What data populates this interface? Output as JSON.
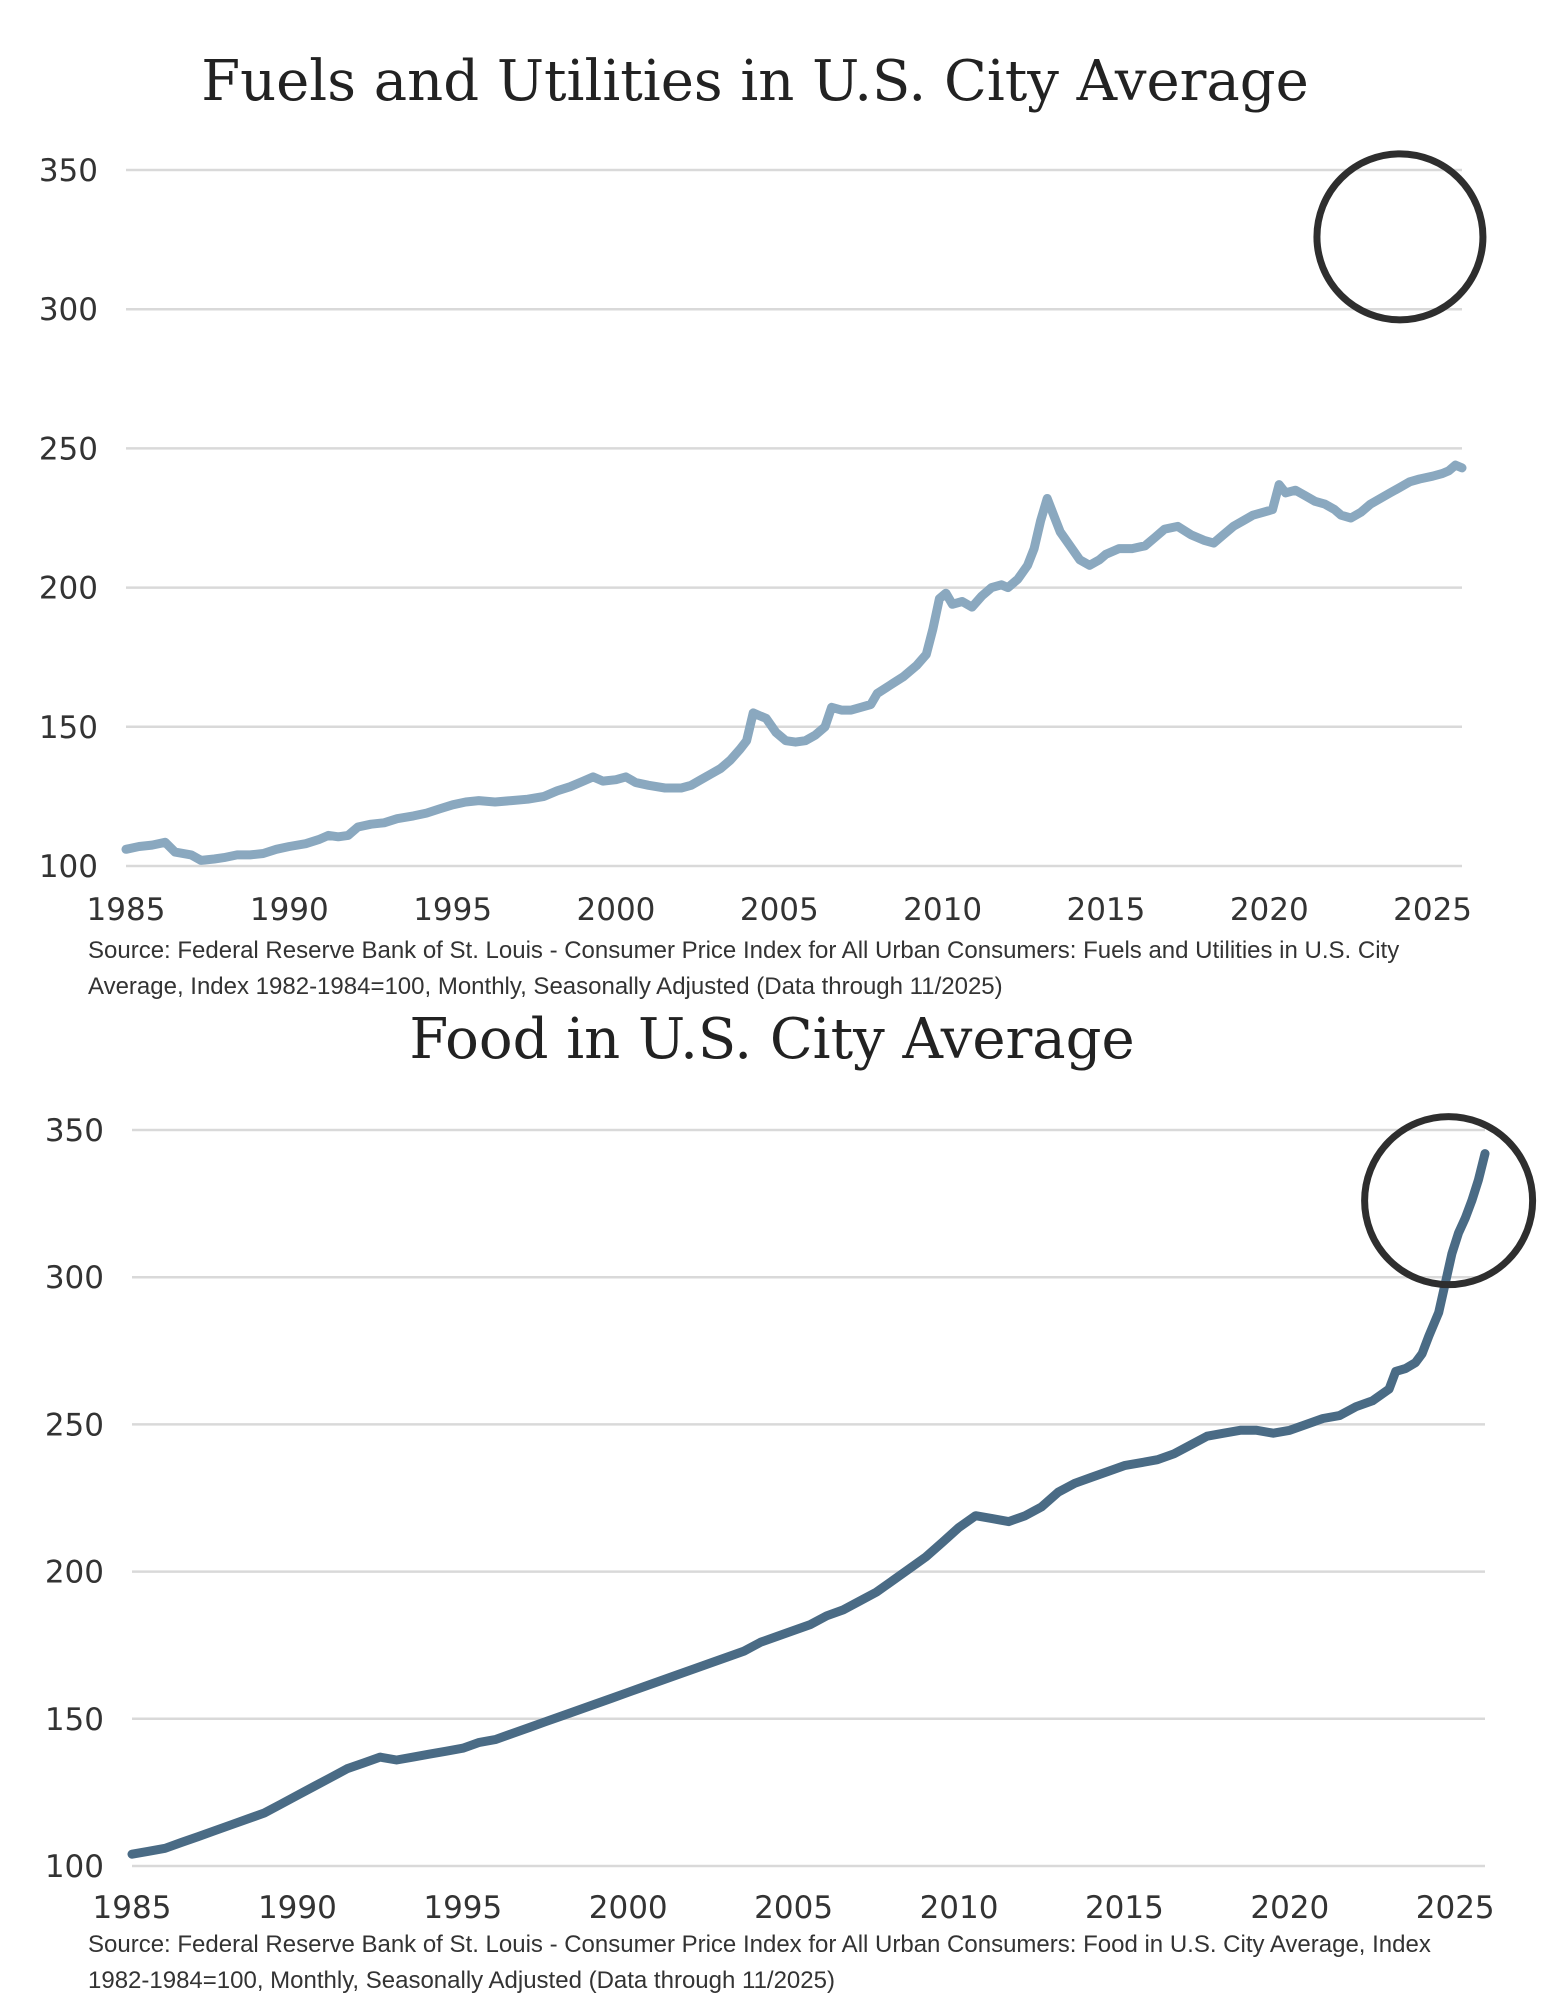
{
  "chart_data": [
    {
      "type": "line",
      "title": "Fuels and Utilities in U.S. City Average",
      "xlabel": "",
      "ylabel": "",
      "xlim": [
        1985,
        2025.9
      ],
      "ylim": [
        100,
        350
      ],
      "x_ticks": [
        1985,
        1990,
        1995,
        2000,
        2005,
        2010,
        2015,
        2020,
        2025
      ],
      "y_ticks": [
        100,
        150,
        200,
        250,
        300,
        350
      ],
      "grid": true,
      "line_color": "#8aa8bf",
      "source": "Source: Federal Reserve Bank of St. Louis - Consumer Price Index for All Urban Consumers: Fuels and Utilities in U.S. City Average, Index 1982-1984=100, Monthly, Seasonally Adjusted (Data through 11/2025)",
      "annotation": {
        "type": "circle",
        "x": 2024,
        "y": 326,
        "description": "circled recent period"
      },
      "series": [
        {
          "name": "Fuels and Utilities",
          "points": [
            [
              1985.0,
              106
            ],
            [
              1985.4,
              107
            ],
            [
              1985.8,
              107.5
            ],
            [
              1986.2,
              108.5
            ],
            [
              1986.5,
              105
            ],
            [
              1987.0,
              104
            ],
            [
              1987.3,
              102
            ],
            [
              1987.7,
              102.5
            ],
            [
              1988.0,
              103
            ],
            [
              1988.4,
              104
            ],
            [
              1988.8,
              104
            ],
            [
              1989.2,
              104.5
            ],
            [
              1989.6,
              106
            ],
            [
              1990.0,
              107
            ],
            [
              1990.5,
              108
            ],
            [
              1990.9,
              109.5
            ],
            [
              1991.2,
              111
            ],
            [
              1991.5,
              110.5
            ],
            [
              1991.8,
              111
            ],
            [
              1992.1,
              114
            ],
            [
              1992.5,
              115
            ],
            [
              1992.9,
              115.5
            ],
            [
              1993.3,
              117
            ],
            [
              1993.8,
              118
            ],
            [
              1994.2,
              119
            ],
            [
              1994.6,
              120.5
            ],
            [
              1995.0,
              122
            ],
            [
              1995.4,
              123
            ],
            [
              1995.8,
              123.5
            ],
            [
              1996.3,
              123
            ],
            [
              1996.8,
              123.5
            ],
            [
              1997.3,
              124
            ],
            [
              1997.8,
              125
            ],
            [
              1998.2,
              127
            ],
            [
              1998.6,
              128.5
            ],
            [
              1999.0,
              130.5
            ],
            [
              1999.3,
              132
            ],
            [
              1999.6,
              130.5
            ],
            [
              2000.0,
              131
            ],
            [
              2000.3,
              132
            ],
            [
              2000.6,
              130
            ],
            [
              2001.0,
              129
            ],
            [
              2001.5,
              128
            ],
            [
              2002.0,
              128
            ],
            [
              2002.3,
              129
            ],
            [
              2002.6,
              131
            ],
            [
              2002.9,
              133
            ],
            [
              2003.2,
              135
            ],
            [
              2003.5,
              138
            ],
            [
              2003.8,
              142
            ],
            [
              2004.0,
              145
            ],
            [
              2004.2,
              155
            ],
            [
              2004.4,
              154
            ],
            [
              2004.6,
              153
            ],
            [
              2004.9,
              148
            ],
            [
              2005.2,
              145
            ],
            [
              2005.5,
              144.5
            ],
            [
              2005.8,
              145
            ],
            [
              2006.1,
              147
            ],
            [
              2006.4,
              150
            ],
            [
              2006.6,
              157
            ],
            [
              2006.9,
              156
            ],
            [
              2007.2,
              156
            ],
            [
              2007.5,
              157
            ],
            [
              2007.8,
              158
            ],
            [
              2008.0,
              162
            ],
            [
              2008.4,
              165
            ],
            [
              2008.8,
              168
            ],
            [
              2009.2,
              172
            ],
            [
              2009.5,
              176
            ],
            [
              2009.7,
              185
            ],
            [
              2009.9,
              196
            ],
            [
              2010.1,
              198
            ],
            [
              2010.3,
              194
            ],
            [
              2010.6,
              195
            ],
            [
              2010.9,
              193
            ],
            [
              2011.2,
              197
            ],
            [
              2011.5,
              200
            ],
            [
              2011.8,
              201
            ],
            [
              2012.0,
              200
            ],
            [
              2012.3,
              203
            ],
            [
              2012.6,
              208
            ],
            [
              2012.8,
              214
            ],
            [
              2013.0,
              224
            ],
            [
              2013.2,
              232
            ],
            [
              2013.4,
              226
            ],
            [
              2013.6,
              220
            ],
            [
              2013.9,
              215
            ],
            [
              2014.2,
              210
            ],
            [
              2014.5,
              208
            ],
            [
              2014.8,
              210
            ],
            [
              2015.0,
              212
            ],
            [
              2015.4,
              214
            ],
            [
              2015.8,
              214
            ],
            [
              2016.2,
              215
            ],
            [
              2016.5,
              218
            ],
            [
              2016.8,
              221
            ],
            [
              2017.2,
              222
            ],
            [
              2017.6,
              219
            ],
            [
              2018.0,
              217
            ],
            [
              2018.3,
              216
            ],
            [
              2018.6,
              219
            ],
            [
              2018.9,
              222
            ],
            [
              2019.2,
              224
            ],
            [
              2019.5,
              226
            ],
            [
              2019.8,
              227
            ],
            [
              2020.1,
              228
            ],
            [
              2020.3,
              237
            ],
            [
              2020.5,
              234
            ],
            [
              2020.8,
              235
            ],
            [
              2021.1,
              233
            ],
            [
              2021.4,
              231
            ],
            [
              2021.7,
              230
            ],
            [
              2022.0,
              228
            ],
            [
              2022.2,
              226
            ],
            [
              2022.5,
              225
            ],
            [
              2022.8,
              227
            ],
            [
              2023.1,
              230
            ],
            [
              2023.4,
              232
            ],
            [
              2023.7,
              234
            ],
            [
              2024.0,
              236
            ],
            [
              2024.3,
              238
            ],
            [
              2024.6,
              239
            ],
            [
              2025.0,
              240
            ],
            [
              2025.3,
              241
            ],
            [
              2025.5,
              242
            ],
            [
              2025.7,
              244
            ],
            [
              2025.9,
              243
            ]
          ]
        }
      ]
    },
    {
      "type": "line",
      "title": "Food in U.S. City Average",
      "xlabel": "",
      "ylabel": "",
      "xlim": [
        1985,
        2025.9
      ],
      "ylim": [
        100,
        350
      ],
      "x_ticks": [
        1985,
        1990,
        1995,
        2000,
        2005,
        2010,
        2015,
        2020,
        2025
      ],
      "y_ticks": [
        100,
        150,
        200,
        250,
        300,
        350
      ],
      "grid": true,
      "line_color": "#4a6b85",
      "source": "Source: Federal Reserve Bank of St. Louis - Consumer Price Index for All Urban Consumers: Food in U.S. City Average, Index 1982-1984=100, Monthly, Seasonally Adjusted (Data through 11/2025)",
      "annotation": {
        "type": "circle",
        "x": 2024.8,
        "y": 326,
        "description": "circled recent period"
      },
      "series": [
        {
          "name": "Food",
          "points": [
            [
              1985.0,
              104
            ],
            [
              1985.5,
              105
            ],
            [
              1986.0,
              106
            ],
            [
              1986.5,
              108
            ],
            [
              1987.0,
              110
            ],
            [
              1987.5,
              112
            ],
            [
              1988.0,
              114
            ],
            [
              1988.5,
              116
            ],
            [
              1989.0,
              118
            ],
            [
              1989.5,
              121
            ],
            [
              1990.0,
              124
            ],
            [
              1990.5,
              127
            ],
            [
              1991.0,
              130
            ],
            [
              1991.5,
              133
            ],
            [
              1992.0,
              135
            ],
            [
              1992.5,
              137
            ],
            [
              1993.0,
              136
            ],
            [
              1993.5,
              137
            ],
            [
              1994.0,
              138
            ],
            [
              1994.5,
              139
            ],
            [
              1995.0,
              140
            ],
            [
              1995.5,
              142
            ],
            [
              1996.0,
              143
            ],
            [
              1996.5,
              145
            ],
            [
              1997.0,
              147
            ],
            [
              1997.5,
              149
            ],
            [
              1998.0,
              151
            ],
            [
              1998.5,
              153
            ],
            [
              1999.0,
              155
            ],
            [
              1999.5,
              157
            ],
            [
              2000.0,
              159
            ],
            [
              2000.5,
              161
            ],
            [
              2001.0,
              163
            ],
            [
              2001.5,
              165
            ],
            [
              2002.0,
              167
            ],
            [
              2002.5,
              169
            ],
            [
              2003.0,
              171
            ],
            [
              2003.5,
              173
            ],
            [
              2004.0,
              176
            ],
            [
              2004.5,
              178
            ],
            [
              2005.0,
              180
            ],
            [
              2005.5,
              182
            ],
            [
              2006.0,
              185
            ],
            [
              2006.5,
              187
            ],
            [
              2007.0,
              190
            ],
            [
              2007.5,
              193
            ],
            [
              2008.0,
              197
            ],
            [
              2008.5,
              201
            ],
            [
              2009.0,
              205
            ],
            [
              2009.5,
              210
            ],
            [
              2010.0,
              215
            ],
            [
              2010.5,
              219
            ],
            [
              2011.0,
              218
            ],
            [
              2011.5,
              217
            ],
            [
              2012.0,
              219
            ],
            [
              2012.5,
              222
            ],
            [
              2013.0,
              227
            ],
            [
              2013.5,
              230
            ],
            [
              2014.0,
              232
            ],
            [
              2014.5,
              234
            ],
            [
              2015.0,
              236
            ],
            [
              2015.5,
              237
            ],
            [
              2016.0,
              238
            ],
            [
              2016.5,
              240
            ],
            [
              2017.0,
              243
            ],
            [
              2017.5,
              246
            ],
            [
              2018.0,
              247
            ],
            [
              2018.5,
              248
            ],
            [
              2019.0,
              248
            ],
            [
              2019.5,
              247
            ],
            [
              2020.0,
              248
            ],
            [
              2020.5,
              250
            ],
            [
              2021.0,
              252
            ],
            [
              2021.5,
              253
            ],
            [
              2022.0,
              256
            ],
            [
              2022.5,
              258
            ],
            [
              2023.0,
              262
            ],
            [
              2023.2,
              268
            ],
            [
              2023.5,
              269
            ],
            [
              2023.8,
              271
            ],
            [
              2024.0,
              274
            ],
            [
              2024.2,
              280
            ],
            [
              2024.5,
              288
            ],
            [
              2024.7,
              298
            ],
            [
              2024.9,
              308
            ],
            [
              2025.1,
              315
            ],
            [
              2025.3,
              320
            ],
            [
              2025.5,
              326
            ],
            [
              2025.7,
              333
            ],
            [
              2025.9,
              342
            ]
          ]
        }
      ]
    }
  ]
}
